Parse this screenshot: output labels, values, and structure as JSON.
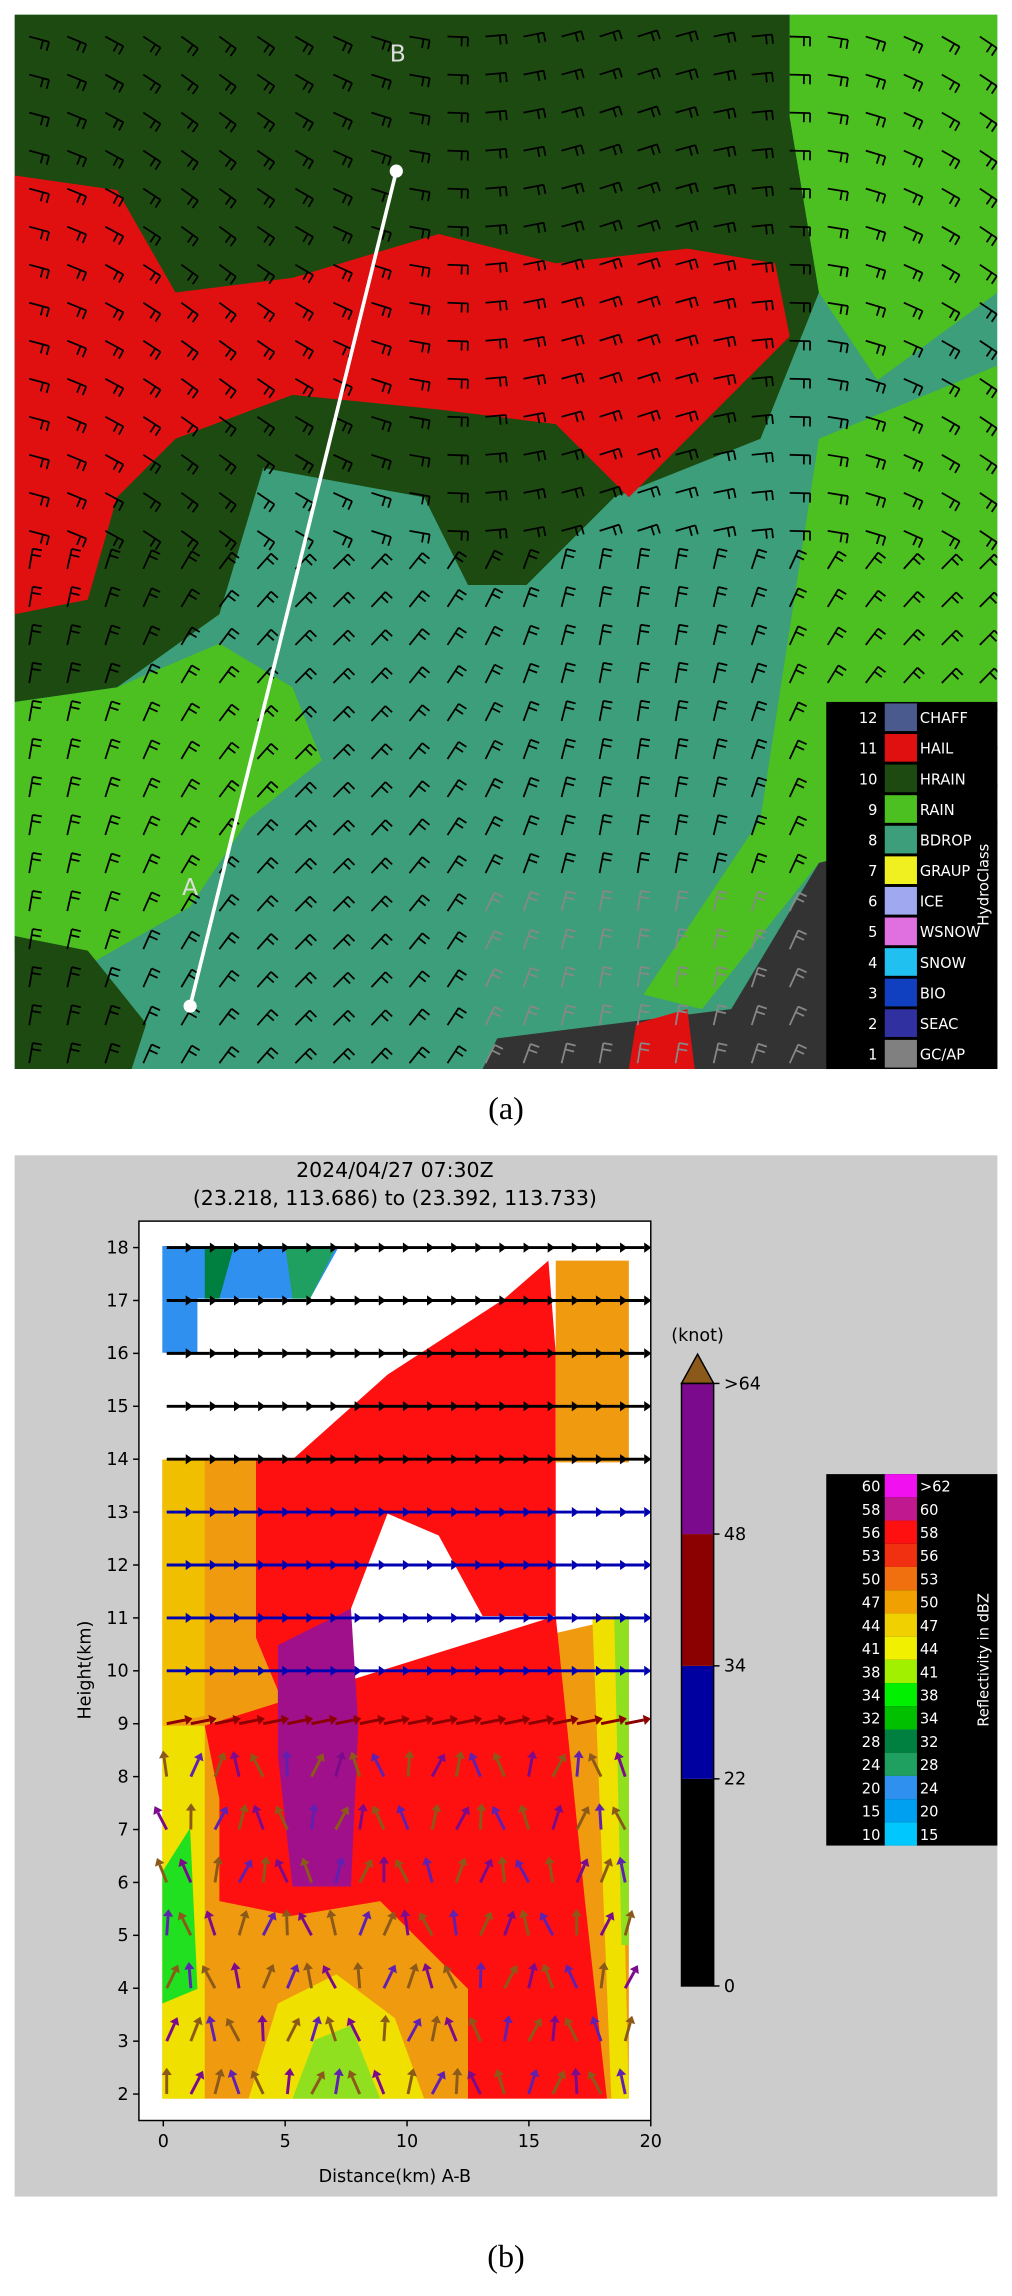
{
  "chart_data": [
    {
      "type": "map",
      "labels": [
        "A",
        "B"
      ],
      "legend": {
        "title": "HydroClass",
        "codes": [
          12,
          11,
          10,
          9,
          8,
          7,
          6,
          5,
          4,
          3,
          2,
          1
        ],
        "names": [
          "CHAFF",
          "HAIL",
          "HRAIN",
          "RAIN",
          "BDROP",
          "GRAUP",
          "ICE",
          "WSNOW",
          "SNOW",
          "BIO",
          "SEAC",
          "GC/AP"
        ],
        "colors": [
          "#4a5a8e",
          "#e01010",
          "#1c4a10",
          "#4cc020",
          "#3c9e7a",
          "#f0f020",
          "#a0a8f0",
          "#e070e0",
          "#20c0f0",
          "#1040c0",
          "#3030a0",
          "#808080"
        ]
      },
      "caption": "(a)"
    },
    {
      "type": "contour",
      "title": "2024/04/27 07:30Z",
      "subtitle": "(23.218, 113.686) to (23.392, 113.733)",
      "x_label": "Distance(km) A-B",
      "y_label": "Height(km)",
      "xlim": [
        -1,
        20
      ],
      "xticks": [
        0,
        5,
        10,
        15,
        20
      ],
      "ylim": [
        1.5,
        18.5
      ],
      "yticks": [
        2,
        3,
        4,
        5,
        6,
        7,
        8,
        9,
        10,
        11,
        12,
        13,
        14,
        15,
        16,
        17,
        18
      ],
      "wind_colorbar": {
        "unit": "(knot)",
        "lim": [
          0,
          64
        ],
        "ticks": [
          0,
          22,
          34,
          48,
          {
            "value": 64,
            "label": ">64"
          }
        ],
        "colors": [
          "#000000",
          "#0000a0",
          "#8b0000",
          "#7b0a8c"
        ],
        "extend_color": "#8b5a1a"
      },
      "reflectivity_legend": {
        "title": "Reflectivity in dBZ",
        "low": [
          60,
          58,
          56,
          53,
          50,
          47,
          44,
          41,
          38,
          34,
          32,
          28,
          24,
          20,
          15,
          10
        ],
        "high": [
          ">62",
          60,
          58,
          56,
          53,
          50,
          47,
          44,
          41,
          38,
          34,
          32,
          28,
          24,
          20,
          15
        ],
        "colors": [
          "#f010f0",
          "#c0188f",
          "#ff1010",
          "#f03010",
          "#f07010",
          "#f0a000",
          "#f0d000",
          "#f0f000",
          "#a0f000",
          "#00f000",
          "#00c000",
          "#008040",
          "#20a060",
          "#3090f0",
          "#00a0f0",
          "#00c8ff"
        ]
      },
      "caption": "(b)"
    }
  ]
}
